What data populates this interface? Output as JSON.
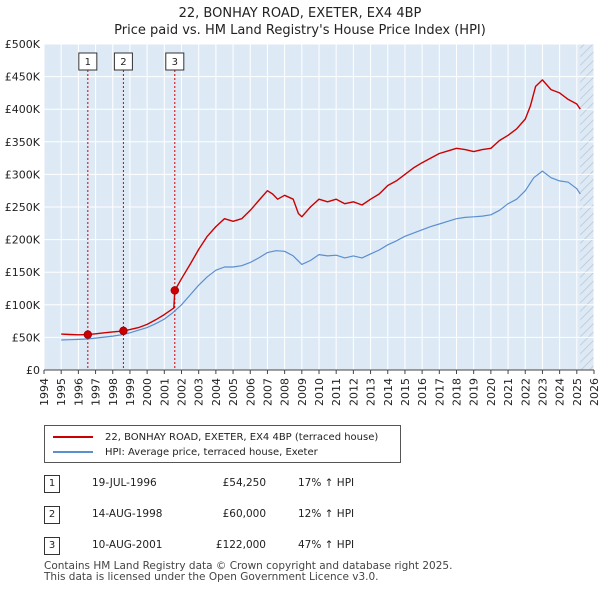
{
  "title_line1": "22, BONHAY ROAD, EXETER, EX4 4BP",
  "title_line2": "Price paid vs. HM Land Registry's House Price Index (HPI)",
  "colors": {
    "property": "#cc0000",
    "hpi": "#5a8fd0",
    "bg": "#ddeaf6",
    "grid": "#ffffff"
  },
  "legend": {
    "property_label": "22, BONHAY ROAD, EXETER, EX4 4BP (terraced house)",
    "hpi_label": "HPI: Average price, terraced house, Exeter"
  },
  "sales": [
    {
      "num": "1",
      "date": "19-JUL-1996",
      "price": "£54,250",
      "hpi": "17% ↑ HPI"
    },
    {
      "num": "2",
      "date": "14-AUG-1998",
      "price": "£60,000",
      "hpi": "12% ↑ HPI"
    },
    {
      "num": "3",
      "date": "10-AUG-2001",
      "price": "£122,000",
      "hpi": "47% ↑ HPI"
    }
  ],
  "footer_line1": "Contains HM Land Registry data © Crown copyright and database right 2025.",
  "footer_line2": "This data is licensed under the Open Government Licence v3.0.",
  "chart_data": {
    "type": "line",
    "title": "Price paid vs. HM Land Registry's House Price Index (HPI)",
    "xlim": [
      1994,
      2026
    ],
    "ylim": [
      0,
      500000
    ],
    "x_ticks": [
      "1994",
      "1995",
      "1996",
      "1997",
      "1998",
      "1999",
      "2000",
      "2001",
      "2002",
      "2003",
      "2004",
      "2005",
      "2006",
      "2007",
      "2008",
      "2009",
      "2010",
      "2011",
      "2012",
      "2013",
      "2014",
      "2015",
      "2016",
      "2017",
      "2018",
      "2019",
      "2020",
      "2021",
      "2022",
      "2023",
      "2024",
      "2025",
      "2026"
    ],
    "y_ticks": [
      {
        "value": 0,
        "label": "£0"
      },
      {
        "value": 50000,
        "label": "£50K"
      },
      {
        "value": 100000,
        "label": "£100K"
      },
      {
        "value": 150000,
        "label": "£150K"
      },
      {
        "value": 200000,
        "label": "£200K"
      },
      {
        "value": 250000,
        "label": "£250K"
      },
      {
        "value": 300000,
        "label": "£300K"
      },
      {
        "value": 350000,
        "label": "£350K"
      },
      {
        "value": 400000,
        "label": "£400K"
      },
      {
        "value": 450000,
        "label": "£450K"
      },
      {
        "value": 500000,
        "label": "£500K"
      }
    ],
    "hatch_after": 2025.2,
    "sale_markers": [
      {
        "label": "1",
        "x": 1996.55,
        "y": 54250
      },
      {
        "label": "2",
        "x": 1998.62,
        "y": 60000
      },
      {
        "label": "3",
        "x": 2001.61,
        "y": 122000
      }
    ],
    "series": [
      {
        "name": "22, BONHAY ROAD, EXETER, EX4 4BP (terraced house)",
        "x": [
          1995.0,
          1995.5,
          1996.0,
          1996.55,
          1997.0,
          1997.5,
          1998.0,
          1998.62,
          1999.0,
          1999.5,
          2000.0,
          2000.5,
          2001.0,
          2001.55,
          2001.61,
          2002.0,
          2002.5,
          2003.0,
          2003.5,
          2004.0,
          2004.5,
          2005.0,
          2005.5,
          2006.0,
          2006.5,
          2007.0,
          2007.3,
          2007.6,
          2008.0,
          2008.5,
          2008.8,
          2009.0,
          2009.5,
          2010.0,
          2010.5,
          2011.0,
          2011.5,
          2012.0,
          2012.5,
          2013.0,
          2013.5,
          2014.0,
          2014.5,
          2015.0,
          2015.5,
          2016.0,
          2016.5,
          2017.0,
          2017.5,
          2018.0,
          2018.5,
          2019.0,
          2019.5,
          2020.0,
          2020.5,
          2021.0,
          2021.5,
          2022.0,
          2022.3,
          2022.6,
          2023.0,
          2023.5,
          2024.0,
          2024.5,
          2025.0,
          2025.2
        ],
        "y": [
          55000,
          54500,
          54000,
          54250,
          55500,
          57000,
          58500,
          60000,
          62000,
          65000,
          70000,
          77000,
          85000,
          95000,
          122000,
          140000,
          162000,
          185000,
          205000,
          220000,
          232000,
          228000,
          232000,
          245000,
          260000,
          275000,
          270000,
          262000,
          268000,
          262000,
          240000,
          235000,
          250000,
          262000,
          258000,
          262000,
          255000,
          258000,
          253000,
          262000,
          270000,
          283000,
          290000,
          300000,
          310000,
          318000,
          325000,
          332000,
          336000,
          340000,
          338000,
          335000,
          338000,
          340000,
          352000,
          360000,
          370000,
          385000,
          405000,
          435000,
          445000,
          430000,
          425000,
          415000,
          408000,
          400000
        ]
      },
      {
        "name": "HPI: Average price, terraced house, Exeter",
        "x": [
          1995.0,
          1995.5,
          1996.0,
          1996.5,
          1997.0,
          1997.5,
          1998.0,
          1998.5,
          1999.0,
          1999.5,
          2000.0,
          2000.5,
          2001.0,
          2001.5,
          2002.0,
          2002.5,
          2003.0,
          2003.5,
          2004.0,
          2004.5,
          2005.0,
          2005.5,
          2006.0,
          2006.5,
          2007.0,
          2007.5,
          2008.0,
          2008.5,
          2009.0,
          2009.5,
          2010.0,
          2010.5,
          2011.0,
          2011.5,
          2012.0,
          2012.5,
          2013.0,
          2013.5,
          2014.0,
          2014.5,
          2015.0,
          2015.5,
          2016.0,
          2016.5,
          2017.0,
          2017.5,
          2018.0,
          2018.5,
          2019.0,
          2019.5,
          2020.0,
          2020.5,
          2021.0,
          2021.5,
          2022.0,
          2022.5,
          2023.0,
          2023.5,
          2024.0,
          2024.5,
          2025.0,
          2025.2
        ],
        "y": [
          46000,
          46500,
          47000,
          47500,
          49000,
          50500,
          52000,
          54000,
          57000,
          61000,
          65000,
          71000,
          78000,
          88000,
          100000,
          115000,
          130000,
          143000,
          153000,
          158000,
          158000,
          160000,
          165000,
          172000,
          180000,
          183000,
          182000,
          175000,
          162000,
          168000,
          177000,
          175000,
          176000,
          172000,
          175000,
          172000,
          178000,
          184000,
          192000,
          198000,
          205000,
          210000,
          215000,
          220000,
          224000,
          228000,
          232000,
          234000,
          235000,
          236000,
          238000,
          245000,
          255000,
          262000,
          275000,
          295000,
          305000,
          295000,
          290000,
          288000,
          278000,
          270000
        ]
      }
    ]
  }
}
